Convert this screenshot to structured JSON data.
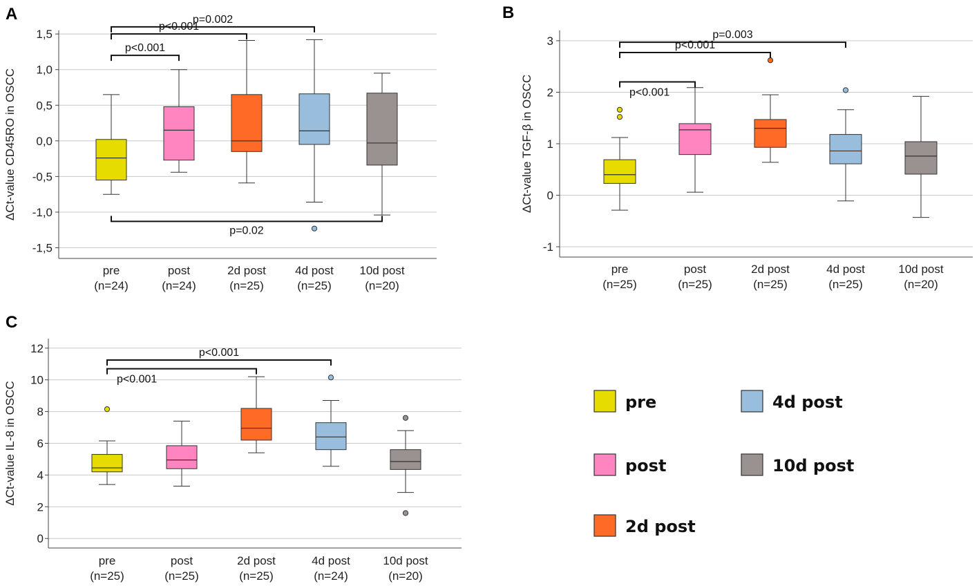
{
  "chart_data": [
    {
      "panel": "A",
      "type": "boxplot",
      "ylabel": "ΔCt-value CD45RO in OSCC",
      "ylim": [
        -1.65,
        1.55
      ],
      "yticks": [
        -1.5,
        -1.0,
        -0.5,
        0.0,
        0.5,
        1.0,
        1.5
      ],
      "ytick_labels": [
        "-1,5",
        "-1,0",
        "-0,5",
        "0,0",
        "0,5",
        "1,0",
        "1,5"
      ],
      "grid": true,
      "categories": [
        {
          "name": "pre",
          "n": "(n=24)",
          "color": "#e6dc00",
          "min": -0.75,
          "q1": -0.55,
          "median": -0.24,
          "q3": 0.02,
          "max": 0.65,
          "outliers": []
        },
        {
          "name": "post",
          "n": "(n=24)",
          "color": "#ff85c0",
          "min": -0.44,
          "q1": -0.27,
          "median": 0.15,
          "q3": 0.48,
          "max": 1.0,
          "outliers": []
        },
        {
          "name": "2d post",
          "n": "(n=25)",
          "color": "#ff6a26",
          "min": -0.59,
          "q1": -0.15,
          "median": 0.0,
          "q3": 0.65,
          "max": 1.41,
          "outliers": []
        },
        {
          "name": "4d post",
          "n": "(n=25)",
          "color": "#99bedd",
          "min": -0.86,
          "q1": -0.05,
          "median": 0.14,
          "q3": 0.66,
          "max": 1.42,
          "outliers": [
            -1.23
          ]
        },
        {
          "name": "10d post",
          "n": "(n=20)",
          "color": "#9a9191",
          "min": -1.04,
          "q1": -0.34,
          "median": -0.03,
          "q3": 0.67,
          "max": 0.95,
          "outliers": []
        }
      ],
      "brackets": [
        {
          "from": 0,
          "to": 3,
          "y": 1.6,
          "label": "p=0.002",
          "side": "top"
        },
        {
          "from": 0,
          "to": 2,
          "y": 1.5,
          "label": "p<0.001",
          "side": "top"
        },
        {
          "from": 0,
          "to": 1,
          "y": 1.2,
          "label": "p<0.001",
          "side": "top"
        },
        {
          "from": 0,
          "to": 4,
          "y": -1.13,
          "label": "p=0.02",
          "side": "bottom"
        }
      ]
    },
    {
      "panel": "B",
      "type": "boxplot",
      "ylabel": "ΔCt-value TGF-β in OSCC",
      "ylim": [
        -1.2,
        3.2
      ],
      "yticks": [
        -1,
        0,
        1,
        2,
        3
      ],
      "ytick_labels": [
        "-1",
        "0",
        "1",
        "2",
        "3"
      ],
      "grid": true,
      "categories": [
        {
          "name": "pre",
          "n": "(n=25)",
          "color": "#e6dc00",
          "min": -0.29,
          "q1": 0.23,
          "median": 0.4,
          "q3": 0.69,
          "max": 1.12,
          "outliers": [
            1.52,
            1.66
          ]
        },
        {
          "name": "post",
          "n": "(n=25)",
          "color": "#ff85c0",
          "min": 0.06,
          "q1": 0.79,
          "median": 1.27,
          "q3": 1.39,
          "max": 2.09,
          "outliers": []
        },
        {
          "name": "2d post",
          "n": "(n=25)",
          "color": "#ff6a26",
          "min": 0.64,
          "q1": 0.93,
          "median": 1.3,
          "q3": 1.47,
          "max": 1.95,
          "outliers": [
            2.62
          ]
        },
        {
          "name": "4d post",
          "n": "(n=25)",
          "color": "#99bedd",
          "min": -0.11,
          "q1": 0.61,
          "median": 0.86,
          "q3": 1.18,
          "max": 1.66,
          "outliers": [
            2.04
          ]
        },
        {
          "name": "10d post",
          "n": "(n=20)",
          "color": "#9a9191",
          "min": -0.43,
          "q1": 0.41,
          "median": 0.76,
          "q3": 1.04,
          "max": 1.92,
          "outliers": []
        }
      ],
      "brackets": [
        {
          "from": 0,
          "to": 3,
          "y": 2.97,
          "label": "p=0.003",
          "side": "top"
        },
        {
          "from": 0,
          "to": 2,
          "y": 2.77,
          "label": "p<0.001",
          "side": "top"
        },
        {
          "from": 0,
          "to": 1,
          "y": 2.2,
          "label": "p<0.001",
          "side": "top-below"
        }
      ]
    },
    {
      "panel": "C",
      "type": "boxplot",
      "ylabel": "ΔCt-value IL-8 in OSCC",
      "ylim": [
        -0.6,
        12.6
      ],
      "yticks": [
        0,
        2,
        4,
        6,
        8,
        10,
        12
      ],
      "ytick_labels": [
        "0",
        "2",
        "4",
        "6",
        "8",
        "10",
        "12"
      ],
      "grid": true,
      "categories": [
        {
          "name": "pre",
          "n": "(n=25)",
          "color": "#e6dc00",
          "min": 3.4,
          "q1": 4.2,
          "median": 4.45,
          "q3": 5.3,
          "max": 6.15,
          "outliers": [
            8.15
          ]
        },
        {
          "name": "post",
          "n": "(n=25)",
          "color": "#ff85c0",
          "min": 3.3,
          "q1": 4.4,
          "median": 4.95,
          "q3": 5.85,
          "max": 7.4,
          "outliers": []
        },
        {
          "name": "2d post",
          "n": "(n=25)",
          "color": "#ff6a26",
          "min": 5.4,
          "q1": 6.2,
          "median": 6.95,
          "q3": 8.2,
          "max": 10.2,
          "outliers": []
        },
        {
          "name": "4d post",
          "n": "(n=24)",
          "color": "#99bedd",
          "min": 4.55,
          "q1": 5.6,
          "median": 6.4,
          "q3": 7.3,
          "max": 8.7,
          "outliers": [
            10.15
          ]
        },
        {
          "name": "10d post",
          "n": "(n=20)",
          "color": "#9a9191",
          "min": 2.9,
          "q1": 4.35,
          "median": 4.85,
          "q3": 5.6,
          "max": 6.8,
          "outliers": [
            7.6,
            1.6
          ]
        }
      ],
      "brackets": [
        {
          "from": 0,
          "to": 3,
          "y": 11.25,
          "label": "p<0.001",
          "side": "top"
        },
        {
          "from": 0,
          "to": 2,
          "y": 10.7,
          "label": "p<0.001",
          "side": "top-below"
        }
      ]
    }
  ],
  "legend": [
    {
      "label": "pre",
      "color": "#e6dc00"
    },
    {
      "label": "post",
      "color": "#ff85c0"
    },
    {
      "label": "2d post",
      "color": "#ff6a26"
    },
    {
      "label": "4d post",
      "color": "#99bedd"
    },
    {
      "label": "10d post",
      "color": "#9a9191"
    }
  ]
}
